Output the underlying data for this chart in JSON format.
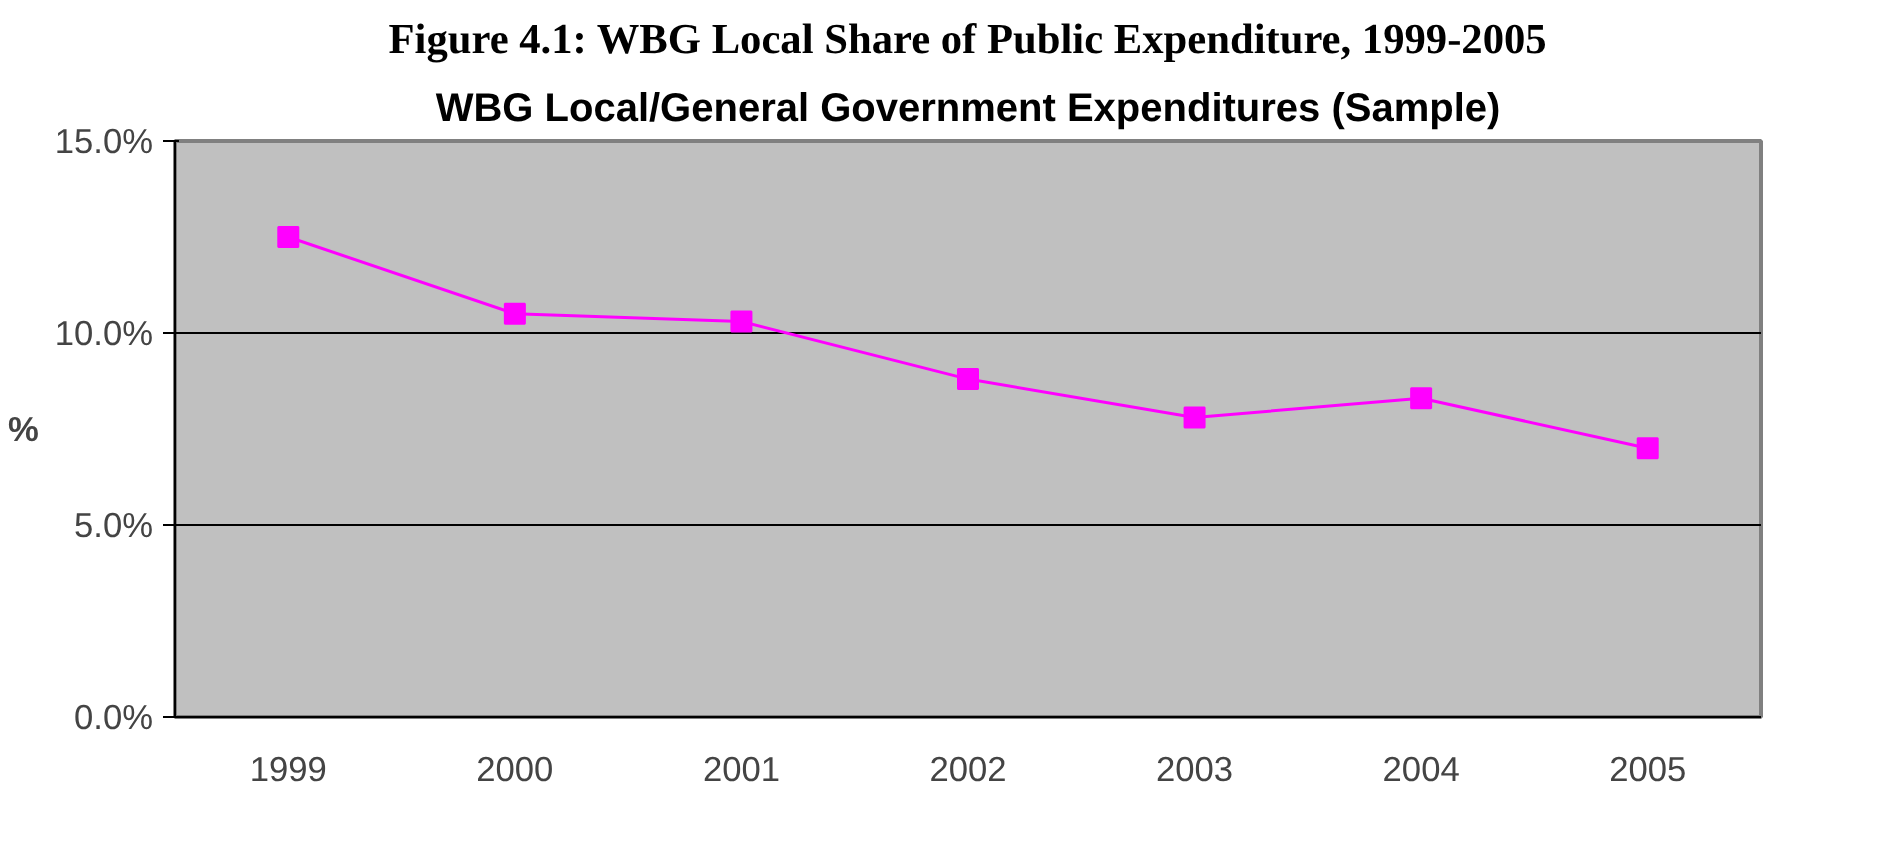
{
  "chart_data": {
    "type": "line",
    "title": "Figure 4.1: WBG Local Share of Public Expenditure, 1999-2005",
    "subtitle": "WBG Local/General Government Expenditures (Sample)",
    "ylabel": "%",
    "categories": [
      "1999",
      "2000",
      "2001",
      "2002",
      "2003",
      "2004",
      "2005"
    ],
    "series": [
      {
        "color": "#ff00ff",
        "values": [
          12.5,
          10.5,
          10.3,
          8.8,
          7.8,
          8.3,
          7.0
        ]
      }
    ],
    "ylim": [
      0,
      15
    ],
    "yticks": [
      {
        "value": 0,
        "label": "0.0%"
      },
      {
        "value": 5,
        "label": "5.0%"
      },
      {
        "value": 10,
        "label": "10.0%"
      },
      {
        "value": 15,
        "label": "15.0%"
      }
    ],
    "grid": "y",
    "marker": "square",
    "line_style": "solid"
  }
}
